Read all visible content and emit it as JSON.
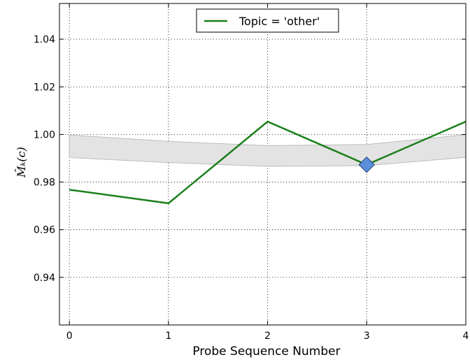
{
  "chart_data": {
    "type": "line",
    "xlabel": "Probe Sequence Number",
    "ylabel": "M̂ₖ(c)",
    "xlim": [
      -0.1,
      4
    ],
    "ylim": [
      0.92,
      1.055
    ],
    "x_ticks": [
      0,
      1,
      2,
      3,
      4
    ],
    "y_ticks": [
      0.94,
      0.96,
      0.98,
      1.0,
      1.02,
      1.04
    ],
    "y_tick_labels": [
      "0.94",
      "0.96",
      "0.98",
      "1.00",
      "1.02",
      "1.04"
    ],
    "grid": true,
    "legend_position": "top-center",
    "series": [
      {
        "name": "Topic = 'other'",
        "color": "#1a801a",
        "x": [
          0,
          1,
          2,
          3,
          4
        ],
        "y": [
          0.9768,
          0.9711,
          1.0054,
          0.9873,
          1.0054
        ]
      }
    ],
    "band": {
      "color": "#e3e3e3",
      "edge_color": "#bdbdbd",
      "x": [
        0,
        1,
        2,
        3,
        4
      ],
      "upper": [
        0.9998,
        0.9971,
        0.9953,
        0.9958,
        0.9999
      ],
      "lower": [
        0.9903,
        0.9882,
        0.9866,
        0.9869,
        0.9904
      ]
    },
    "marker": {
      "shape": "diamond",
      "color": "#5b8fd9",
      "x": 3,
      "y": 0.9873
    }
  }
}
